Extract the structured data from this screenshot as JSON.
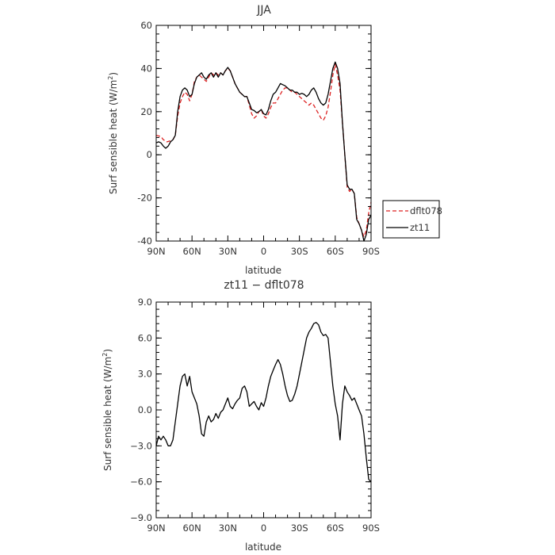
{
  "chart_data": [
    {
      "type": "line",
      "title": "JJA",
      "xlabel": "latitude",
      "ylabel": "Surf sensible heat (W/m²)",
      "ylabel_main": "Surf sensible heat (W/m",
      "ylabel_exp": "2",
      "ylabel_close": ")",
      "xlim": [
        90,
        -90
      ],
      "ylim": [
        -40,
        60
      ],
      "xticks": [
        90,
        60,
        30,
        0,
        -30,
        -60,
        -90
      ],
      "xtick_labels": [
        "90N",
        "60N",
        "30N",
        "0",
        "30S",
        "60S",
        "90S"
      ],
      "yticks": [
        -40,
        -20,
        0,
        20,
        40,
        60
      ],
      "ytick_labels": [
        "-40",
        "-20",
        "0",
        "20",
        "40",
        "60"
      ],
      "legend": {
        "placement": "right-lower",
        "entries": [
          "dflt078",
          "zt11"
        ]
      },
      "series": [
        {
          "name": "dflt078",
          "color": "#dd2222",
          "dash": "dashed",
          "points": [
            [
              90,
              9
            ],
            [
              86,
              8.5
            ],
            [
              84,
              7
            ],
            [
              81,
              6
            ],
            [
              78,
              6.5
            ],
            [
              76,
              7
            ],
            [
              74,
              9
            ],
            [
              72,
              18
            ],
            [
              70,
              24
            ],
            [
              68,
              27
            ],
            [
              66,
              29
            ],
            [
              64,
              28
            ],
            [
              62,
              25
            ],
            [
              60,
              28
            ],
            [
              58,
              34
            ],
            [
              56,
              36
            ],
            [
              54,
              37
            ],
            [
              52,
              36
            ],
            [
              50,
              35
            ],
            [
              48,
              34
            ],
            [
              46,
              36
            ],
            [
              44,
              38
            ],
            [
              42,
              37
            ],
            [
              40,
              38
            ],
            [
              38,
              37
            ],
            [
              36,
              38
            ],
            [
              34,
              37
            ],
            [
              32,
              39
            ],
            [
              30,
              40
            ],
            [
              28,
              39
            ],
            [
              26,
              36
            ],
            [
              24,
              33
            ],
            [
              22,
              31
            ],
            [
              20,
              29
            ],
            [
              18,
              28
            ],
            [
              16,
              27
            ],
            [
              14,
              27
            ],
            [
              12,
              23
            ],
            [
              10,
              19
            ],
            [
              8,
              17
            ],
            [
              6,
              18
            ],
            [
              4,
              20
            ],
            [
              2,
              21
            ],
            [
              0,
              18
            ],
            [
              -2,
              17
            ],
            [
              -4,
              19
            ],
            [
              -6,
              22
            ],
            [
              -8,
              24
            ],
            [
              -10,
              24
            ],
            [
              -12,
              26
            ],
            [
              -14,
              28
            ],
            [
              -16,
              30
            ],
            [
              -18,
              31
            ],
            [
              -20,
              31
            ],
            [
              -22,
              30
            ],
            [
              -24,
              29
            ],
            [
              -26,
              29
            ],
            [
              -28,
              28
            ],
            [
              -30,
              27
            ],
            [
              -32,
              26
            ],
            [
              -34,
              25
            ],
            [
              -36,
              24
            ],
            [
              -38,
              23
            ],
            [
              -40,
              24
            ],
            [
              -42,
              23
            ],
            [
              -44,
              21
            ],
            [
              -46,
              19
            ],
            [
              -48,
              17
            ],
            [
              -50,
              16
            ],
            [
              -52,
              18
            ],
            [
              -54,
              22
            ],
            [
              -56,
              29
            ],
            [
              -58,
              37
            ],
            [
              -60,
              42
            ],
            [
              -62,
              37
            ],
            [
              -64,
              30
            ],
            [
              -66,
              15
            ],
            [
              -68,
              0
            ],
            [
              -70,
              -15
            ],
            [
              -72,
              -17
            ],
            [
              -74,
              -16
            ],
            [
              -76,
              -18
            ],
            [
              -78,
              -29
            ],
            [
              -80,
              -32
            ],
            [
              -82,
              -35
            ],
            [
              -84,
              -38
            ],
            [
              -86,
              -35
            ],
            [
              -88,
              -27
            ],
            [
              -90,
              -22
            ]
          ]
        },
        {
          "name": "zt11",
          "color": "#000000",
          "dash": "solid",
          "points": [
            [
              90,
              5.5
            ],
            [
              88,
              6
            ],
            [
              86,
              5.5
            ],
            [
              84,
              4
            ],
            [
              82,
              3
            ],
            [
              80,
              4
            ],
            [
              78,
              6
            ],
            [
              76,
              7
            ],
            [
              74,
              9
            ],
            [
              72,
              20
            ],
            [
              70,
              27
            ],
            [
              68,
              30
            ],
            [
              66,
              31
            ],
            [
              64,
              30
            ],
            [
              62,
              27
            ],
            [
              60,
              28
            ],
            [
              58,
              33
            ],
            [
              56,
              36
            ],
            [
              54,
              37
            ],
            [
              52,
              38
            ],
            [
              50,
              36
            ],
            [
              48,
              35
            ],
            [
              46,
              37
            ],
            [
              44,
              38
            ],
            [
              42,
              36
            ],
            [
              40,
              38
            ],
            [
              38,
              36
            ],
            [
              36,
              38
            ],
            [
              34,
              37
            ],
            [
              32,
              39
            ],
            [
              30,
              40.5
            ],
            [
              28,
              39
            ],
            [
              26,
              36
            ],
            [
              24,
              33
            ],
            [
              22,
              31
            ],
            [
              20,
              29
            ],
            [
              18,
              28
            ],
            [
              16,
              27
            ],
            [
              14,
              27
            ],
            [
              12,
              24
            ],
            [
              10,
              21
            ],
            [
              8,
              20.5
            ],
            [
              6,
              19.5
            ],
            [
              4,
              20
            ],
            [
              2,
              21
            ],
            [
              0,
              19
            ],
            [
              -2,
              18.5
            ],
            [
              -4,
              21
            ],
            [
              -6,
              25
            ],
            [
              -8,
              28
            ],
            [
              -10,
              29
            ],
            [
              -12,
              31
            ],
            [
              -14,
              33
            ],
            [
              -16,
              32.5
            ],
            [
              -18,
              32
            ],
            [
              -20,
              31
            ],
            [
              -22,
              30
            ],
            [
              -24,
              30
            ],
            [
              -26,
              29
            ],
            [
              -28,
              29
            ],
            [
              -30,
              28
            ],
            [
              -32,
              28.5
            ],
            [
              -34,
              28
            ],
            [
              -36,
              27
            ],
            [
              -38,
              28
            ],
            [
              -40,
              30
            ],
            [
              -42,
              31
            ],
            [
              -44,
              29
            ],
            [
              -46,
              26
            ],
            [
              -48,
              24
            ],
            [
              -50,
              23
            ],
            [
              -52,
              24
            ],
            [
              -54,
              28
            ],
            [
              -56,
              34
            ],
            [
              -58,
              40
            ],
            [
              -60,
              43
            ],
            [
              -62,
              40
            ],
            [
              -64,
              33
            ],
            [
              -66,
              15
            ],
            [
              -68,
              0
            ],
            [
              -70,
              -14
            ],
            [
              -72,
              -16
            ],
            [
              -74,
              -16
            ],
            [
              -76,
              -18
            ],
            [
              -78,
              -30
            ],
            [
              -80,
              -32
            ],
            [
              -82,
              -35
            ],
            [
              -84,
              -40
            ],
            [
              -86,
              -37
            ],
            [
              -88,
              -30
            ],
            [
              -90,
              -28
            ]
          ]
        }
      ]
    },
    {
      "type": "line",
      "title": "zt11 − dflt078",
      "xlabel": "latitude",
      "ylabel": "Surf sensible heat (W/m²)",
      "ylabel_main": "Surf sensible heat (W/m",
      "ylabel_exp": "2",
      "ylabel_close": ")",
      "xlim": [
        90,
        -90
      ],
      "ylim": [
        -9,
        9
      ],
      "xticks": [
        90,
        60,
        30,
        0,
        -30,
        -60,
        -90
      ],
      "xtick_labels": [
        "90N",
        "60N",
        "30N",
        "0",
        "30S",
        "60S",
        "90S"
      ],
      "yticks": [
        -9,
        -6,
        -3,
        0,
        3,
        6,
        9
      ],
      "ytick_labels": [
        "−9.0",
        "−6.0",
        "−3.0",
        "0.0",
        "3.0",
        "6.0",
        "9.0"
      ],
      "series": [
        {
          "name": "zt11",
          "color": "#000000",
          "dash": "solid",
          "points": [
            [
              90,
              -3
            ],
            [
              88,
              -2.2
            ],
            [
              86,
              -2.5
            ],
            [
              84,
              -2.2
            ],
            [
              82,
              -2.5
            ],
            [
              80,
              -3
            ],
            [
              78,
              -3
            ],
            [
              76,
              -2.5
            ],
            [
              74,
              -1
            ],
            [
              72,
              0.5
            ],
            [
              70,
              2
            ],
            [
              68,
              2.8
            ],
            [
              66,
              3
            ],
            [
              64,
              2
            ],
            [
              62,
              2.8
            ],
            [
              60,
              1.5
            ],
            [
              58,
              1
            ],
            [
              56,
              0.5
            ],
            [
              54,
              -0.5
            ],
            [
              52,
              -2
            ],
            [
              50,
              -2.2
            ],
            [
              48,
              -1
            ],
            [
              46,
              -0.5
            ],
            [
              44,
              -1
            ],
            [
              42,
              -0.8
            ],
            [
              40,
              -0.3
            ],
            [
              38,
              -0.7
            ],
            [
              36,
              -0.2
            ],
            [
              34,
              0
            ],
            [
              32,
              0.5
            ],
            [
              30,
              1
            ],
            [
              28,
              0.3
            ],
            [
              26,
              0.1
            ],
            [
              24,
              0.5
            ],
            [
              22,
              0.8
            ],
            [
              20,
              1
            ],
            [
              18,
              1.8
            ],
            [
              16,
              2
            ],
            [
              14,
              1.5
            ],
            [
              12,
              0.3
            ],
            [
              10,
              0.5
            ],
            [
              8,
              0.7
            ],
            [
              6,
              0.3
            ],
            [
              4,
              0
            ],
            [
              2,
              0.6
            ],
            [
              0,
              0.3
            ],
            [
              -2,
              1
            ],
            [
              -4,
              2
            ],
            [
              -6,
              2.8
            ],
            [
              -8,
              3.3
            ],
            [
              -10,
              3.8
            ],
            [
              -12,
              4.2
            ],
            [
              -14,
              3.8
            ],
            [
              -16,
              3
            ],
            [
              -18,
              2
            ],
            [
              -20,
              1.2
            ],
            [
              -22,
              0.7
            ],
            [
              -24,
              0.8
            ],
            [
              -26,
              1.3
            ],
            [
              -28,
              2
            ],
            [
              -30,
              3
            ],
            [
              -32,
              4
            ],
            [
              -34,
              5
            ],
            [
              -36,
              6
            ],
            [
              -38,
              6.5
            ],
            [
              -40,
              6.8
            ],
            [
              -42,
              7.2
            ],
            [
              -44,
              7.3
            ],
            [
              -46,
              7.1
            ],
            [
              -48,
              6.5
            ],
            [
              -50,
              6.2
            ],
            [
              -52,
              6.3
            ],
            [
              -54,
              6
            ],
            [
              -56,
              4
            ],
            [
              -58,
              2
            ],
            [
              -60,
              0.5
            ],
            [
              -62,
              -0.5
            ],
            [
              -64,
              -2.5
            ],
            [
              -66,
              0.5
            ],
            [
              -68,
              2
            ],
            [
              -70,
              1.5
            ],
            [
              -72,
              1.2
            ],
            [
              -74,
              0.8
            ],
            [
              -76,
              1
            ],
            [
              -78,
              0.5
            ],
            [
              -80,
              0
            ],
            [
              -82,
              -0.5
            ],
            [
              -84,
              -2
            ],
            [
              -86,
              -4
            ],
            [
              -88,
              -5.8
            ],
            [
              -90,
              -6
            ]
          ]
        }
      ]
    }
  ]
}
